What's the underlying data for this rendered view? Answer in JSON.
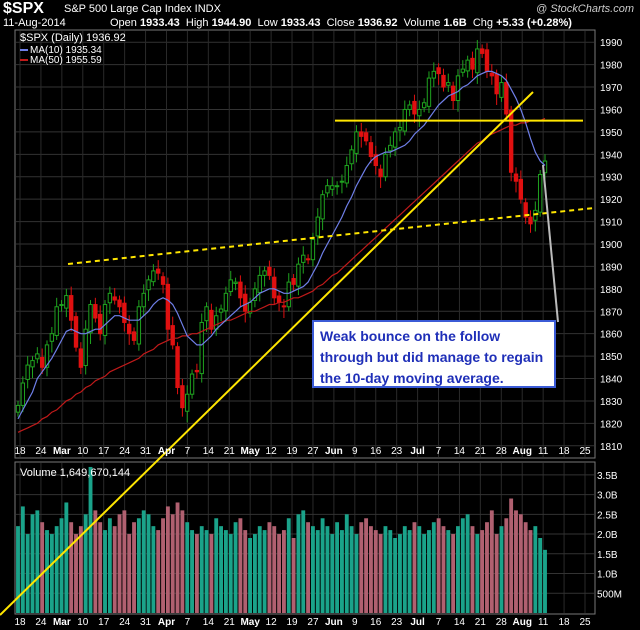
{
  "header": {
    "symbol": "$SPX",
    "name": "S&P 500 Large Cap Index INDX",
    "date": "11-Aug-2014",
    "open_label": "Open",
    "open": "1933.43",
    "high_label": "High",
    "high": "1944.90",
    "low_label": "Low",
    "low": "1933.43",
    "close_label": "Close",
    "close": "1936.92",
    "volume_label": "Volume",
    "volume": "1.6B",
    "chg_label": "Chg",
    "chg": "+5.33 (+0.28%)",
    "brand": "@ StockCharts.com"
  },
  "colors": {
    "up": "#1fa31f",
    "down": "#e01010",
    "ma10": "#6f7fe8",
    "ma50": "#c01a1a",
    "annotation_line": "#ffe600",
    "vol_up": "#1aa38a",
    "vol_down": "#b06070"
  },
  "annotation": "Weak bounce on the follow through but did manage to regain the 10-day moving average.",
  "chart_data": [
    {
      "type": "candlestick",
      "title": "$SPX (Daily)",
      "legend": [
        {
          "label": "$SPX (Daily) 1936.92"
        },
        {
          "label": "MA(10) 1935.34"
        },
        {
          "label": "MA(50) 1955.59"
        }
      ],
      "ylim": [
        1805,
        1995
      ],
      "yticks": [
        1810,
        1820,
        1830,
        1840,
        1850,
        1860,
        1870,
        1880,
        1890,
        1900,
        1910,
        1920,
        1930,
        1940,
        1950,
        1960,
        1970,
        1980,
        1990
      ],
      "xticks": [
        "18",
        "24",
        "Mar",
        "10",
        "17",
        "24",
        "31",
        "Apr",
        "7",
        "14",
        "21",
        "May",
        "12",
        "19",
        "27",
        "Jun",
        "9",
        "16",
        "23",
        "Jul",
        "7",
        "14",
        "21",
        "28",
        "Aug",
        "11",
        "18",
        "25"
      ],
      "month_ticks": [
        "Mar",
        "Apr",
        "May",
        "Jun",
        "Jul",
        "Aug"
      ],
      "close_series": [
        1828,
        1838,
        1846,
        1848,
        1851,
        1845,
        1855,
        1860,
        1872,
        1873,
        1877,
        1866,
        1854,
        1845,
        1862,
        1873,
        1867,
        1860,
        1873,
        1878,
        1875,
        1872,
        1865,
        1860,
        1857,
        1872,
        1878,
        1884,
        1888,
        1887,
        1882,
        1862,
        1855,
        1836,
        1827,
        1833,
        1842,
        1843,
        1865,
        1872,
        1862,
        1868,
        1871,
        1878,
        1884,
        1883,
        1876,
        1870,
        1874,
        1880,
        1886,
        1888,
        1886,
        1876,
        1874,
        1872,
        1883,
        1882,
        1891,
        1895,
        1893,
        1902,
        1912,
        1922,
        1926,
        1926,
        1926,
        1928,
        1935,
        1942,
        1950,
        1948,
        1946,
        1939,
        1935,
        1930,
        1940,
        1944,
        1950,
        1952,
        1960,
        1962,
        1958,
        1960,
        1963,
        1974,
        1977,
        1976,
        1970,
        1972,
        1964,
        1975,
        1978,
        1982,
        1978,
        1987,
        1985,
        1977,
        1975,
        1967,
        1972,
        1958,
        1932,
        1928,
        1920,
        1912,
        1909,
        1915,
        1931,
        1937
      ],
      "ma10": [
        1822,
        1826,
        1830,
        1834,
        1840,
        1843,
        1846,
        1849,
        1853,
        1857,
        1861,
        1862,
        1861,
        1860,
        1860,
        1861,
        1862,
        1862,
        1864,
        1866,
        1868,
        1868,
        1867,
        1866,
        1866,
        1866,
        1868,
        1870,
        1873,
        1875,
        1876,
        1875,
        1873,
        1869,
        1864,
        1859,
        1857,
        1855,
        1855,
        1857,
        1859,
        1862,
        1864,
        1866,
        1868,
        1870,
        1872,
        1873,
        1874,
        1876,
        1878,
        1879,
        1880,
        1880,
        1879,
        1878,
        1878,
        1879,
        1880,
        1881,
        1883,
        1887,
        1891,
        1896,
        1900,
        1904,
        1908,
        1912,
        1917,
        1921,
        1926,
        1930,
        1934,
        1937,
        1939,
        1940,
        1941,
        1941,
        1942,
        1943,
        1944,
        1946,
        1949,
        1951,
        1953,
        1956,
        1959,
        1962,
        1964,
        1966,
        1967,
        1968,
        1970,
        1971,
        1973,
        1975,
        1976,
        1977,
        1977,
        1976,
        1975,
        1973,
        1969,
        1965,
        1960,
        1954,
        1947,
        1941,
        1937,
        1935
      ],
      "ma50": [
        1816,
        1817,
        1818,
        1819,
        1820,
        1822,
        1823,
        1825,
        1826,
        1828,
        1830,
        1831,
        1833,
        1834,
        1836,
        1837,
        1839,
        1840,
        1841,
        1843,
        1844,
        1845,
        1846,
        1847,
        1848,
        1849,
        1851,
        1852,
        1853,
        1855,
        1856,
        1857,
        1858,
        1858,
        1859,
        1859,
        1860,
        1860,
        1861,
        1862,
        1863,
        1864,
        1865,
        1866,
        1866,
        1867,
        1868,
        1869,
        1870,
        1870,
        1871,
        1872,
        1873,
        1873,
        1874,
        1874,
        1875,
        1876,
        1876,
        1877,
        1878,
        1879,
        1881,
        1882,
        1884,
        1886,
        1887,
        1889,
        1891,
        1893,
        1895,
        1897,
        1899,
        1901,
        1903,
        1905,
        1907,
        1909,
        1911,
        1913,
        1915,
        1917,
        1919,
        1921,
        1923,
        1925,
        1927,
        1929,
        1931,
        1933,
        1935,
        1937,
        1939,
        1941,
        1943,
        1945,
        1946,
        1948,
        1949,
        1950,
        1951,
        1952,
        1953,
        1953,
        1954,
        1954,
        1955,
        1955,
        1955,
        1956
      ],
      "trendlines": [
        {
          "type": "horizontal resistance",
          "y": 1955
        },
        {
          "type": "rising support",
          "from": "Apr",
          "to": "Jul"
        },
        {
          "type": "dashed support",
          "from": "Feb",
          "to": "Aug"
        }
      ]
    },
    {
      "type": "bar",
      "title": "Volume 1,649,670,144",
      "yticks": [
        "3.5B",
        "3.0B",
        "2.5B",
        "2.0B",
        "1.5B",
        "1.0B",
        "500M"
      ],
      "ylim": [
        0,
        3.8
      ],
      "values_billion": [
        2.2,
        2.7,
        2.0,
        2.5,
        2.6,
        2.3,
        2.1,
        2.0,
        2.2,
        2.4,
        2.8,
        2.3,
        2.0,
        2.2,
        2.5,
        3.7,
        2.6,
        2.3,
        2.1,
        2.4,
        2.2,
        2.5,
        2.6,
        2.0,
        2.3,
        2.4,
        2.6,
        2.5,
        2.2,
        2.1,
        2.4,
        2.7,
        2.5,
        2.8,
        2.6,
        2.3,
        2.1,
        2.0,
        2.2,
        2.1,
        2.0,
        2.4,
        2.2,
        2.1,
        2.0,
        2.3,
        2.4,
        2.1,
        1.9,
        2.0,
        2.2,
        2.1,
        2.3,
        2.2,
        2.0,
        2.1,
        2.4,
        1.9,
        2.5,
        2.6,
        2.3,
        2.2,
        2.1,
        2.4,
        2.2,
        2.0,
        2.3,
        2.1,
        2.5,
        2.2,
        2.0,
        2.3,
        2.4,
        2.2,
        2.1,
        2.0,
        2.2,
        2.1,
        1.9,
        2.0,
        2.2,
        2.1,
        2.3,
        2.2,
        2.0,
        2.1,
        2.3,
        2.4,
        2.2,
        2.1,
        2.0,
        2.2,
        2.4,
        2.5,
        2.2,
        2.0,
        2.1,
        2.3,
        2.6,
        2.0,
        2.2,
        2.4,
        2.9,
        2.6,
        2.5,
        2.3,
        2.1,
        2.2,
        1.9,
        1.6
      ]
    }
  ]
}
